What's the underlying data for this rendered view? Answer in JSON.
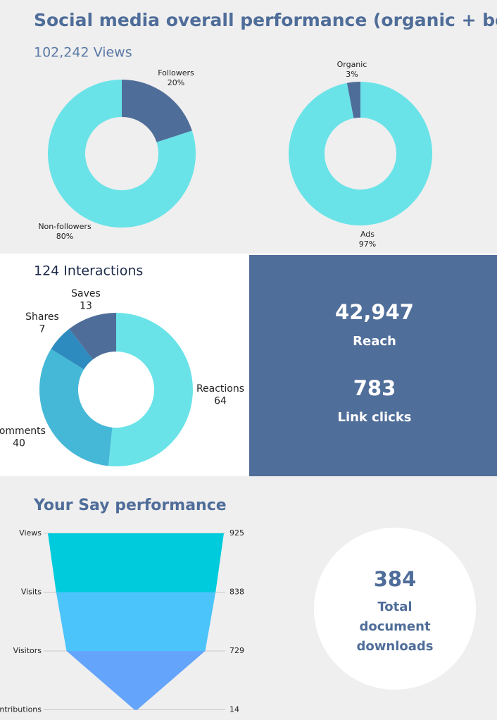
{
  "title": "Social media overall performance (organic + boost)",
  "views": "102,242 Views",
  "chart_data": [
    {
      "type": "donut",
      "categories": [
        "Followers",
        "Non-followers"
      ],
      "values": [
        20,
        80
      ],
      "value_labels": [
        "20%",
        "80%"
      ],
      "colors": [
        "#4f6d99",
        "#6ae3e8"
      ]
    },
    {
      "type": "donut",
      "categories": [
        "Ads",
        "Organic"
      ],
      "values": [
        97,
        3
      ],
      "value_labels": [
        "97%",
        "3%"
      ],
      "colors": [
        "#6ae3e8",
        "#4f6d99"
      ]
    },
    {
      "type": "donut",
      "title": "124 Interactions",
      "categories": [
        "Reactions",
        "Comments",
        "Shares",
        "Saves"
      ],
      "values": [
        64,
        40,
        7,
        13
      ],
      "colors": [
        "#6ae3e8",
        "#45b8d8",
        "#2e8bbf",
        "#4f6d99"
      ]
    },
    {
      "type": "funnel",
      "title": "Your Say performance",
      "categories": [
        "Views",
        "Visits",
        "Visitors",
        "Contributions"
      ],
      "values": [
        925,
        838,
        729,
        14
      ],
      "colors": [
        "#00cbdc",
        "#4bc4fb",
        "#64a5fb"
      ]
    }
  ],
  "kpis": [
    {
      "value": "42,947",
      "label": "Reach"
    },
    {
      "value": "783",
      "label": "Link clicks"
    }
  ],
  "downloads": {
    "value": "384",
    "label": "Total document downloads"
  }
}
